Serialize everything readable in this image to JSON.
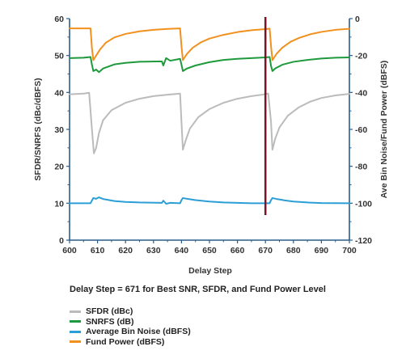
{
  "chart_data": {
    "type": "line",
    "xlabel": "Delay Step",
    "ylabel_left": "SFDR/SNRFS (dBc/dBFS)",
    "ylabel_right": "Ave Bin Noise/Fund Power (dBFS)",
    "xlim": [
      600,
      700
    ],
    "ylim_left": [
      0,
      60
    ],
    "ylim_right": [
      -120,
      0
    ],
    "x_ticks": [
      "600",
      "610",
      "620",
      "630",
      "640",
      "650",
      "660",
      "670",
      "680",
      "690",
      "700"
    ],
    "y_left_ticks": [
      "0",
      "10",
      "20",
      "30",
      "40",
      "50",
      "60"
    ],
    "y_right_ticks": [
      "0",
      "-20",
      "-40",
      "-60",
      "-80",
      "-100",
      "-120"
    ],
    "marker": {
      "x": 670,
      "color": "#7a1424"
    },
    "annotation": "Delay Step = 671 for Best SNR, SFDR, and Fund Power Level",
    "grid": false,
    "legend_placement": "bottom-left",
    "series": [
      {
        "name": "SFDR (dBc)",
        "axis": "left",
        "color": "#bbbbbb",
        "points": [
          [
            600,
            39.5
          ],
          [
            605,
            39.7
          ],
          [
            607,
            39.9
          ],
          [
            608,
            30
          ],
          [
            608.7,
            23.5
          ],
          [
            609.5,
            25
          ],
          [
            610.5,
            29
          ],
          [
            612,
            32.5
          ],
          [
            615,
            35.2
          ],
          [
            620,
            37.2
          ],
          [
            625,
            38.3
          ],
          [
            630,
            39
          ],
          [
            635,
            39.4
          ],
          [
            639.5,
            39.7
          ],
          [
            640,
            32
          ],
          [
            640.5,
            24.5
          ],
          [
            641.5,
            27
          ],
          [
            643,
            30.2
          ],
          [
            646,
            33.3
          ],
          [
            650,
            35.5
          ],
          [
            655,
            37.2
          ],
          [
            660,
            38.3
          ],
          [
            665,
            39
          ],
          [
            669,
            39.4
          ],
          [
            670,
            39.6
          ],
          [
            671,
            39.7
          ],
          [
            672,
            32
          ],
          [
            672.5,
            24.5
          ],
          [
            673.5,
            27.5
          ],
          [
            675,
            30.5
          ],
          [
            678,
            33.7
          ],
          [
            682,
            36
          ],
          [
            686,
            37.5
          ],
          [
            690,
            38.5
          ],
          [
            695,
            39.2
          ],
          [
            700,
            39.6
          ]
        ]
      },
      {
        "name": "SNRFS (dB)",
        "axis": "left",
        "color": "#1e9a3c",
        "points": [
          [
            600,
            49.3
          ],
          [
            605,
            49.4
          ],
          [
            607.5,
            49.6
          ],
          [
            608,
            47.5
          ],
          [
            608.5,
            45.8
          ],
          [
            609.5,
            46.2
          ],
          [
            610.5,
            45.5
          ],
          [
            612,
            46.5
          ],
          [
            616,
            47.6
          ],
          [
            620,
            48
          ],
          [
            625,
            48.3
          ],
          [
            631,
            48.4
          ],
          [
            633,
            48.4
          ],
          [
            633.5,
            47.3
          ],
          [
            634.5,
            49.3
          ],
          [
            636,
            48.6
          ],
          [
            639.5,
            49.1
          ],
          [
            640,
            47.5
          ],
          [
            640.5,
            45.8
          ],
          [
            642,
            46.5
          ],
          [
            645,
            47.3
          ],
          [
            650,
            48.2
          ],
          [
            655,
            48.8
          ],
          [
            660,
            49.1
          ],
          [
            665,
            49.3
          ],
          [
            670,
            49.5
          ],
          [
            671.5,
            49.6
          ],
          [
            672,
            47.2
          ],
          [
            672.5,
            45.8
          ],
          [
            673.5,
            46.5
          ],
          [
            676,
            47.5
          ],
          [
            680,
            48.3
          ],
          [
            685,
            48.8
          ],
          [
            690,
            49.2
          ],
          [
            695,
            49.4
          ],
          [
            700,
            49.5
          ]
        ]
      },
      {
        "name": "Average Bin Noise (dBFS)",
        "axis": "right",
        "color": "#2b9ed6",
        "points": [
          [
            600,
            -100
          ],
          [
            605,
            -100
          ],
          [
            607.5,
            -100
          ],
          [
            608,
            -98.5
          ],
          [
            608.5,
            -97.2
          ],
          [
            609.5,
            -97.6
          ],
          [
            610.5,
            -96.8
          ],
          [
            612,
            -97.7
          ],
          [
            616,
            -98.8
          ],
          [
            620,
            -99.3
          ],
          [
            625,
            -99.6
          ],
          [
            633,
            -99.8
          ],
          [
            633.5,
            -98.6
          ],
          [
            634.5,
            -100.3
          ],
          [
            636,
            -99.8
          ],
          [
            639.5,
            -100
          ],
          [
            640,
            -98.3
          ],
          [
            640.5,
            -97.2
          ],
          [
            642,
            -97.6
          ],
          [
            645,
            -98.3
          ],
          [
            650,
            -99.1
          ],
          [
            655,
            -99.6
          ],
          [
            660,
            -99.8
          ],
          [
            665,
            -100
          ],
          [
            671.5,
            -100
          ],
          [
            672,
            -98.3
          ],
          [
            672.5,
            -97.2
          ],
          [
            674,
            -97.7
          ],
          [
            677,
            -98.5
          ],
          [
            680,
            -99.1
          ],
          [
            685,
            -99.6
          ],
          [
            690,
            -99.9
          ],
          [
            700,
            -100
          ]
        ]
      },
      {
        "name": "Fund Power (dBFS)",
        "axis": "right",
        "color": "#f2901e",
        "points": [
          [
            600,
            -5.3
          ],
          [
            605,
            -5.3
          ],
          [
            607.5,
            -5.3
          ],
          [
            608,
            -16
          ],
          [
            608.5,
            -22.5
          ],
          [
            609.5,
            -20
          ],
          [
            611,
            -16.5
          ],
          [
            613,
            -13
          ],
          [
            616,
            -10.2
          ],
          [
            620,
            -8.3
          ],
          [
            625,
            -6.9
          ],
          [
            630,
            -6.1
          ],
          [
            635,
            -5.6
          ],
          [
            639.5,
            -5.3
          ],
          [
            640,
            -15
          ],
          [
            640.5,
            -22.5
          ],
          [
            642,
            -19
          ],
          [
            644,
            -15.8
          ],
          [
            647,
            -12.8
          ],
          [
            650,
            -10.8
          ],
          [
            655,
            -8.8
          ],
          [
            660,
            -7.3
          ],
          [
            665,
            -6.3
          ],
          [
            670,
            -5.7
          ],
          [
            671.5,
            -5.4
          ],
          [
            672,
            -15
          ],
          [
            672.5,
            -22.5
          ],
          [
            674,
            -19
          ],
          [
            676,
            -15.8
          ],
          [
            679,
            -12.5
          ],
          [
            682,
            -10.5
          ],
          [
            686,
            -8.5
          ],
          [
            690,
            -7.2
          ],
          [
            695,
            -6.1
          ],
          [
            700,
            -5.5
          ]
        ]
      }
    ]
  }
}
